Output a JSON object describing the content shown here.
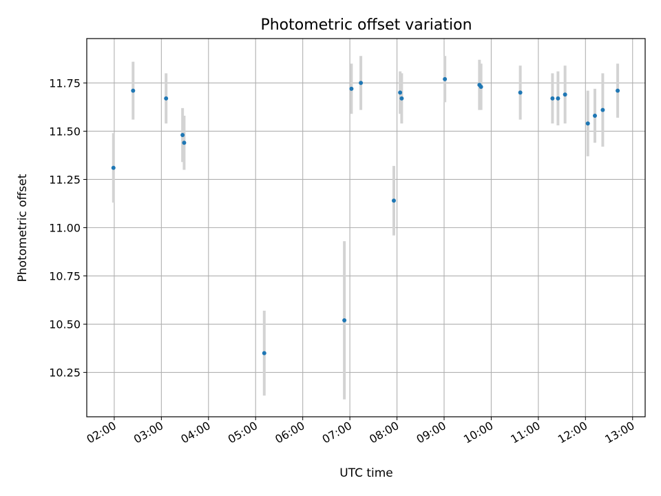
{
  "chart_data": {
    "type": "scatter",
    "title": "Photometric offset variation",
    "xlabel": "UTC time",
    "ylabel": "Photometric offset",
    "xlim": [
      "01:25",
      "13:16"
    ],
    "ylim": [
      10.02,
      11.98
    ],
    "x_ticks": [
      "02:00",
      "03:00",
      "04:00",
      "05:00",
      "06:00",
      "07:00",
      "08:00",
      "09:00",
      "10:00",
      "11:00",
      "12:00",
      "13:00"
    ],
    "y_ticks": [
      10.25,
      10.5,
      10.75,
      11.0,
      11.25,
      11.5,
      11.75
    ],
    "y_tick_labels": [
      "10.25",
      "10.50",
      "10.75",
      "11.00",
      "11.25",
      "11.50",
      "11.75"
    ],
    "grid": true,
    "x_tick_rotation_deg": 30,
    "colors": {
      "marker": "#1f77b4",
      "errorbar": "#d3d3d3",
      "grid": "#b0b0b0"
    },
    "points": [
      {
        "x": "01:59",
        "y": 11.31,
        "err": 0.18
      },
      {
        "x": "02:24",
        "y": 11.71,
        "err": 0.15
      },
      {
        "x": "03:06",
        "y": 11.67,
        "err": 0.13
      },
      {
        "x": "03:27",
        "y": 11.48,
        "err": 0.14
      },
      {
        "x": "03:29",
        "y": 11.44,
        "err": 0.14
      },
      {
        "x": "05:11",
        "y": 10.35,
        "err": 0.22
      },
      {
        "x": "06:53",
        "y": 10.52,
        "err": 0.41
      },
      {
        "x": "07:02",
        "y": 11.72,
        "err": 0.13
      },
      {
        "x": "07:14",
        "y": 11.75,
        "err": 0.14
      },
      {
        "x": "07:56",
        "y": 11.14,
        "err": 0.18
      },
      {
        "x": "08:04",
        "y": 11.7,
        "err": 0.11
      },
      {
        "x": "08:06",
        "y": 11.67,
        "err": 0.13
      },
      {
        "x": "09:01",
        "y": 11.77,
        "err": 0.12
      },
      {
        "x": "09:45",
        "y": 11.74,
        "err": 0.13
      },
      {
        "x": "09:47",
        "y": 11.73,
        "err": 0.12
      },
      {
        "x": "10:37",
        "y": 11.7,
        "err": 0.14
      },
      {
        "x": "11:18",
        "y": 11.67,
        "err": 0.13
      },
      {
        "x": "11:25",
        "y": 11.67,
        "err": 0.14
      },
      {
        "x": "11:34",
        "y": 11.69,
        "err": 0.15
      },
      {
        "x": "12:03",
        "y": 11.54,
        "err": 0.17
      },
      {
        "x": "12:12",
        "y": 11.58,
        "err": 0.14
      },
      {
        "x": "12:22",
        "y": 11.61,
        "err": 0.19
      },
      {
        "x": "12:41",
        "y": 11.71,
        "err": 0.14
      }
    ]
  }
}
